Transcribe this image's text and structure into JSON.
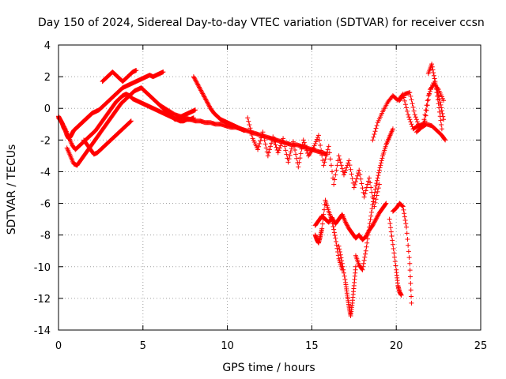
{
  "chart_data": {
    "type": "scatter",
    "title": "Day 150 of 2024, Sidereal Day-to-day VTEC variation (SDTVAR) for receiver ccsn",
    "xlabel": "GPS time / hours",
    "ylabel": "SDTVAR / TECUs",
    "xlim": [
      0,
      25
    ],
    "ylim": [
      -14,
      4
    ],
    "xticks": [
      "0",
      "5",
      "10",
      "15",
      "20",
      "25"
    ],
    "yticks": [
      "4",
      "2",
      "0",
      "-2",
      "-4",
      "-6",
      "-8",
      "-10",
      "-12",
      "-14"
    ],
    "grid": true,
    "marker": "plus",
    "color": "#ff0000",
    "series": [
      {
        "x": [
          0.0,
          0.1,
          0.2,
          0.3,
          0.4,
          0.5,
          0.6,
          0.7,
          0.8,
          0.9,
          1.0,
          1.1,
          1.2,
          1.3,
          1.4,
          1.5,
          1.6,
          1.7,
          1.8,
          1.9,
          2.0,
          2.2,
          2.4,
          2.6,
          2.8,
          3.0,
          3.2,
          3.4,
          3.6,
          3.8,
          4.0,
          4.2,
          4.4,
          4.6,
          4.8,
          5.0,
          5.2,
          5.4,
          5.6,
          5.8,
          6.0,
          6.2
        ],
        "y": [
          -0.5,
          -0.7,
          -0.9,
          -1.2,
          -1.4,
          -1.7,
          -1.9,
          -1.8,
          -1.6,
          -1.4,
          -1.3,
          -1.2,
          -1.1,
          -1.0,
          -0.9,
          -0.8,
          -0.7,
          -0.6,
          -0.5,
          -0.4,
          -0.3,
          -0.2,
          -0.1,
          0.1,
          0.3,
          0.5,
          0.7,
          0.9,
          1.1,
          1.3,
          1.4,
          1.5,
          1.6,
          1.7,
          1.8,
          1.9,
          2.0,
          2.1,
          2.0,
          2.1,
          2.2,
          2.3
        ]
      },
      {
        "x": [
          0.0,
          0.2,
          0.4,
          0.6,
          0.8,
          1.0,
          1.2,
          1.4,
          1.6,
          1.8,
          2.0,
          2.2,
          2.4,
          2.6,
          2.8,
          3.0,
          3.2,
          3.4,
          3.6,
          3.8,
          4.0,
          4.2,
          4.4,
          4.6,
          4.8,
          5.0,
          5.2,
          5.4,
          5.6,
          5.8,
          6.0,
          6.2,
          6.4,
          6.6,
          6.8,
          7.0,
          7.2,
          7.4,
          7.6,
          7.8,
          8.0
        ],
        "y": [
          -0.6,
          -0.9,
          -1.3,
          -1.8,
          -2.3,
          -2.6,
          -2.4,
          -2.2,
          -2.0,
          -1.8,
          -1.6,
          -1.4,
          -1.1,
          -0.8,
          -0.5,
          -0.2,
          0.1,
          0.4,
          0.6,
          0.8,
          0.9,
          0.8,
          0.6,
          0.5,
          0.4,
          0.3,
          0.2,
          0.1,
          0.0,
          -0.1,
          -0.2,
          -0.3,
          -0.4,
          -0.5,
          -0.6,
          -0.7,
          -0.8,
          -0.8,
          -0.7,
          -0.7,
          -0.6
        ]
      },
      {
        "x": [
          0.5,
          0.7,
          0.9,
          1.1,
          1.3,
          1.5,
          1.7,
          1.9,
          2.1,
          2.3,
          2.5,
          2.7,
          2.9,
          3.1,
          3.3,
          3.5,
          3.7,
          3.9,
          4.1,
          4.3,
          4.5,
          4.7,
          4.9,
          5.1,
          5.3,
          5.5,
          5.7,
          5.9,
          6.1,
          6.3,
          6.5,
          6.7,
          6.9,
          7.1,
          7.3,
          7.5,
          7.7,
          7.9,
          8.1
        ],
        "y": [
          -2.5,
          -3.0,
          -3.5,
          -3.6,
          -3.3,
          -3.0,
          -2.7,
          -2.4,
          -2.1,
          -1.8,
          -1.5,
          -1.2,
          -0.9,
          -0.6,
          -0.3,
          0.0,
          0.3,
          0.5,
          0.7,
          0.9,
          1.1,
          1.2,
          1.3,
          1.1,
          0.9,
          0.7,
          0.5,
          0.3,
          0.1,
          -0.1,
          -0.3,
          -0.5,
          -0.7,
          -0.6,
          -0.5,
          -0.4,
          -0.3,
          -0.2,
          -0.1
        ]
      },
      {
        "x": [
          1.5,
          1.7,
          1.9,
          2.1,
          2.3,
          2.5,
          2.7,
          2.9,
          3.1,
          3.3,
          3.5,
          3.7,
          3.9,
          4.1,
          4.3
        ],
        "y": [
          -2.0,
          -2.3,
          -2.6,
          -2.9,
          -2.8,
          -2.6,
          -2.4,
          -2.2,
          -2.0,
          -1.8,
          -1.6,
          -1.4,
          -1.2,
          -1.0,
          -0.8
        ]
      },
      {
        "x": [
          2.6,
          2.8,
          3.0,
          3.2,
          3.4,
          3.6,
          3.8,
          4.0,
          4.2,
          4.4,
          4.6
        ],
        "y": [
          1.7,
          1.9,
          2.1,
          2.3,
          2.1,
          1.9,
          1.7,
          1.9,
          2.1,
          2.3,
          2.4
        ]
      },
      {
        "x": [
          8.0,
          8.2,
          8.4,
          8.6,
          8.8,
          9.0,
          9.2,
          9.4,
          9.6,
          9.8,
          10.0,
          10.2,
          10.4,
          10.6,
          10.8,
          11.0
        ],
        "y": [
          2.0,
          1.6,
          1.2,
          0.8,
          0.4,
          0.0,
          -0.3,
          -0.5,
          -0.7,
          -0.8,
          -0.9,
          -1.0,
          -1.1,
          -1.2,
          -1.3,
          -1.4
        ]
      },
      {
        "x": [
          6.0,
          6.3,
          6.6,
          6.9,
          7.2,
          7.5,
          7.8,
          8.1,
          8.4,
          8.7,
          9.0,
          9.3,
          9.6,
          9.9,
          10.2,
          10.5,
          10.8,
          11.1,
          11.4,
          11.7,
          12.0,
          12.3,
          12.6,
          12.9,
          13.2,
          13.5,
          13.8,
          14.1,
          14.4,
          14.7,
          15.0,
          15.3,
          15.6,
          15.9
        ],
        "y": [
          0.2,
          0.0,
          -0.2,
          -0.4,
          -0.5,
          -0.6,
          -0.7,
          -0.8,
          -0.8,
          -0.9,
          -0.9,
          -1.0,
          -1.0,
          -1.1,
          -1.2,
          -1.2,
          -1.3,
          -1.4,
          -1.5,
          -1.6,
          -1.7,
          -1.8,
          -1.9,
          -2.0,
          -2.1,
          -2.2,
          -2.3,
          -2.3,
          -2.4,
          -2.5,
          -2.6,
          -2.7,
          -2.8,
          -2.9
        ]
      },
      {
        "x": [
          11.2,
          11.5,
          11.8,
          12.1,
          12.4,
          12.7,
          13.0,
          13.3,
          13.6,
          13.9,
          14.2,
          14.5,
          14.8,
          15.1,
          15.4,
          15.7,
          16.0,
          16.3,
          16.6,
          16.9,
          17.2,
          17.5,
          17.8,
          18.1,
          18.4,
          18.7,
          19.0
        ],
        "y": [
          -0.6,
          -1.9,
          -2.6,
          -1.5,
          -3.0,
          -1.8,
          -2.8,
          -1.9,
          -3.4,
          -2.1,
          -3.7,
          -2.0,
          -3.0,
          -2.5,
          -1.7,
          -3.6,
          -2.4,
          -4.8,
          -3.0,
          -4.2,
          -3.3,
          -5.0,
          -3.9,
          -5.6,
          -4.4,
          -6.2,
          -4.8
        ]
      },
      {
        "x": [
          15.2,
          15.4,
          15.6,
          15.8,
          16.0,
          16.2,
          16.4,
          16.6,
          16.8,
          17.0,
          17.2,
          17.4,
          17.6,
          17.8,
          18.0,
          18.2,
          18.4,
          18.6,
          18.8,
          19.0,
          19.2,
          19.4
        ],
        "y": [
          -7.4,
          -7.1,
          -6.8,
          -7.0,
          -7.2,
          -6.9,
          -7.3,
          -7.0,
          -6.7,
          -7.2,
          -7.6,
          -7.9,
          -8.2,
          -8.0,
          -8.3,
          -8.1,
          -7.7,
          -7.4,
          -7.0,
          -6.6,
          -6.3,
          -6.0
        ]
      },
      {
        "x": [
          15.2,
          15.3,
          15.4,
          15.5,
          15.6,
          15.8,
          16.0,
          16.2,
          16.4,
          16.6,
          16.8
        ],
        "y": [
          -8.0,
          -8.3,
          -8.5,
          -8.1,
          -7.6,
          -5.8,
          -6.5,
          -7.1,
          -8.2,
          -9.5,
          -10.2
        ]
      },
      {
        "x": [
          16.6,
          16.8,
          17.0,
          17.1,
          17.2,
          17.3,
          17.4,
          17.5,
          17.6
        ],
        "y": [
          -8.7,
          -9.8,
          -11.0,
          -11.8,
          -12.5,
          -13.1,
          -12.3,
          -11.2,
          -10.0
        ]
      },
      {
        "x": [
          17.6,
          17.8,
          18.0,
          18.2,
          18.4,
          18.6,
          18.8,
          19.0,
          19.2,
          19.4,
          19.6,
          19.8
        ],
        "y": [
          -9.3,
          -9.9,
          -10.2,
          -9.0,
          -7.5,
          -6.1,
          -4.9,
          -3.9,
          -3.0,
          -2.3,
          -1.8,
          -1.3
        ]
      },
      {
        "x": [
          19.8,
          20.0,
          20.2,
          20.4,
          20.6,
          20.8,
          20.9
        ],
        "y": [
          -6.5,
          -6.3,
          -6.0,
          -6.2,
          -7.5,
          -9.8,
          -12.3
        ]
      },
      {
        "x": [
          19.6,
          19.8,
          20.0,
          20.1,
          20.2,
          20.3
        ],
        "y": [
          -7.0,
          -8.6,
          -10.2,
          -11.2,
          -11.6,
          -11.8
        ]
      },
      {
        "x": [
          18.6,
          18.9,
          19.2,
          19.5,
          19.8,
          20.1,
          20.4,
          20.7,
          21.0,
          21.3,
          21.6,
          21.9,
          22.2,
          22.5,
          22.8
        ],
        "y": [
          -2.0,
          -0.9,
          -0.2,
          0.4,
          0.8,
          0.5,
          0.9,
          -0.4,
          -1.3,
          -1.1,
          -1.0,
          0.8,
          1.6,
          1.2,
          0.5
        ]
      },
      {
        "x": [
          20.2,
          20.5,
          20.8,
          21.1,
          21.4,
          21.7,
          22.0,
          22.3,
          22.6,
          22.8
        ],
        "y": [
          0.5,
          0.9,
          1.0,
          -0.4,
          -1.3,
          -0.8,
          1.2,
          1.6,
          0.4,
          -0.7
        ]
      },
      {
        "x": [
          21.9,
          22.1,
          22.3,
          22.5,
          22.7
        ],
        "y": [
          2.2,
          2.8,
          1.7,
          0.3,
          -1.3
        ]
      },
      {
        "x": [
          21.2,
          21.5,
          21.8,
          22.1,
          22.4,
          22.7,
          22.9
        ],
        "y": [
          -1.5,
          -1.2,
          -1.0,
          -1.1,
          -1.4,
          -1.7,
          -2.0
        ]
      }
    ]
  }
}
